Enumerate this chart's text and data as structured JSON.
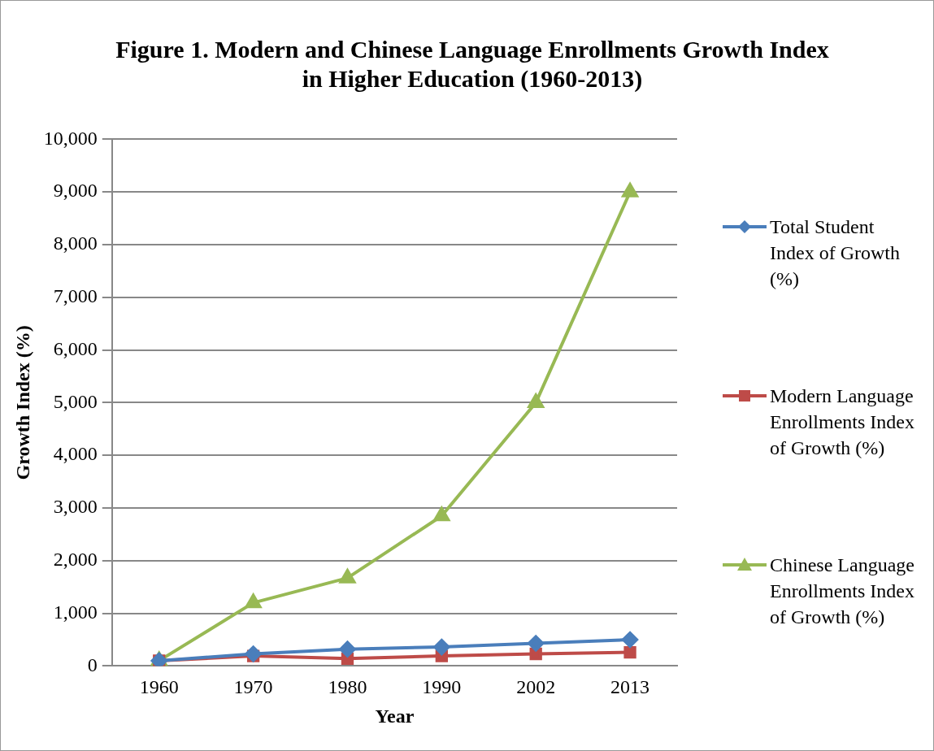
{
  "chart_data": {
    "type": "line",
    "title": "Figure 1. Modern and Chinese Language Enrollments Growth Index in Higher Education (1960-2013)",
    "xlabel": "Year",
    "ylabel": "Growth Index (%)",
    "categories": [
      "1960",
      "1970",
      "1980",
      "1990",
      "2002",
      "2013"
    ],
    "series": [
      {
        "name": "Total Student Index of Growth (%)",
        "color": "#4a7ebb",
        "marker": "diamond",
        "values": [
          100,
          230,
          320,
          360,
          430,
          500
        ]
      },
      {
        "name": "Modern Language Enrollments Index of Growth (%)",
        "color": "#be4b48",
        "marker": "square",
        "values": [
          100,
          190,
          140,
          190,
          230,
          260
        ]
      },
      {
        "name": "Chinese Language Enrollments Index of Growth (%)",
        "color": "#98b954",
        "marker": "triangle",
        "values": [
          100,
          1200,
          1670,
          2850,
          5000,
          9000
        ]
      }
    ],
    "ylim": [
      0,
      10000
    ],
    "yticks": [
      0,
      {
        "value": 1000,
        "label": "1,000"
      },
      {
        "value": 2000,
        "label": "2,000"
      },
      {
        "value": 3000,
        "label": "3,000"
      },
      {
        "value": 4000,
        "label": "4,000"
      },
      {
        "value": 5000,
        "label": "5,000"
      },
      {
        "value": 6000,
        "label": "6,000"
      },
      {
        "value": 7000,
        "label": "7,000"
      },
      {
        "value": 8000,
        "label": "8,000"
      },
      {
        "value": 9000,
        "label": "9,000"
      },
      {
        "value": 10000,
        "label": "10,000"
      }
    ],
    "grid": "y",
    "legend": "right"
  }
}
